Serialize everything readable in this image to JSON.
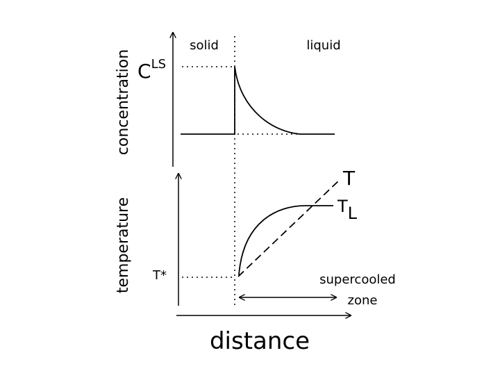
{
  "labels": {
    "y_axis_top": "concentration",
    "y_axis_bottom": "temperature",
    "x_axis": "distance",
    "region_solid": "solid",
    "region_liquid": "liquid",
    "conc_symbol_base": "C",
    "conc_symbol_sup": "LS",
    "temp_T": "T",
    "temp_TL_base": "T",
    "temp_TL_sub": "L",
    "temp_Tstar": "T*",
    "zone_line1": "supercooled",
    "zone_line2": "zone"
  },
  "colors": {
    "ink": "#000000",
    "background": "#ffffff"
  }
}
